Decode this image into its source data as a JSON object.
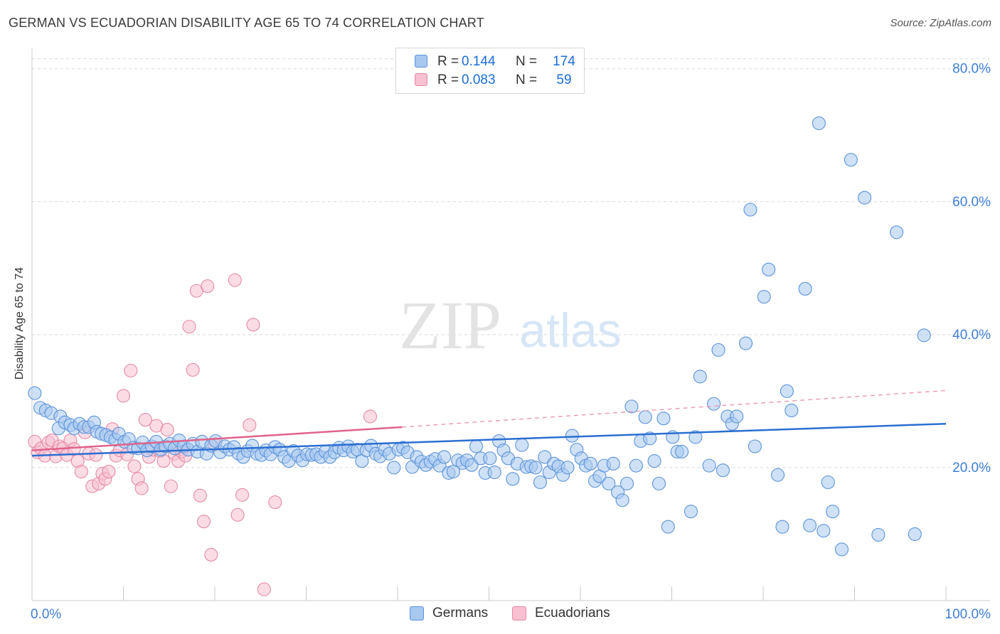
{
  "title": "GERMAN VS ECUADORIAN DISABILITY AGE 65 TO 74 CORRELATION CHART",
  "source": "Source: ZipAtlas.com",
  "watermark": {
    "zip": "ZIP",
    "atlas": "atlas"
  },
  "legend": [
    {
      "r_label": "R =",
      "r_value": "0.144",
      "n_label": "N =",
      "n_value": "174",
      "color": "#a8c8f0",
      "stroke": "#5b93d8"
    },
    {
      "r_label": "R =",
      "r_value": "0.083",
      "n_label": "N =",
      "n_value": "59",
      "color": "#f8c0d0",
      "stroke": "#e48aa6"
    }
  ],
  "bottom_legend": [
    "Germans",
    "Ecuadorians"
  ],
  "chart_data": {
    "type": "scatter",
    "title": "GERMAN VS ECUADORIAN DISABILITY AGE 65 TO 74 CORRELATION CHART",
    "xlabel": "",
    "ylabel": "Disability Age 65 to 74",
    "xlim": [
      0,
      100
    ],
    "ylim": [
      0,
      82
    ],
    "x_tick_labels": [
      "0.0%",
      "100.0%"
    ],
    "y_ticks": [
      20,
      40,
      60,
      80
    ],
    "y_tick_labels": [
      "20.0%",
      "40.0%",
      "60.0%",
      "80.0%"
    ],
    "grid": true,
    "legend_position": "top-center",
    "series": [
      {
        "name": "Germans",
        "color": "#a8c8f0",
        "stroke": "#5b93d8",
        "trend": {
          "x": [
            0,
            100
          ],
          "y": [
            21.8,
            26.6
          ],
          "color": "#2b6fd1"
        },
        "points": [
          [
            0.3,
            31.2
          ],
          [
            0.9,
            29.0
          ],
          [
            1.5,
            28.6
          ],
          [
            2.1,
            28.2
          ],
          [
            3.1,
            27.7
          ],
          [
            2.9,
            25.9
          ],
          [
            3.6,
            26.8
          ],
          [
            4.2,
            26.4
          ],
          [
            4.6,
            25.9
          ],
          [
            5.2,
            26.6
          ],
          [
            5.7,
            26.1
          ],
          [
            6.2,
            26.1
          ],
          [
            6.8,
            26.8
          ],
          [
            7.1,
            25.4
          ],
          [
            7.6,
            25.1
          ],
          [
            8.1,
            24.9
          ],
          [
            8.6,
            24.6
          ],
          [
            9.1,
            24.2
          ],
          [
            9.5,
            25.1
          ],
          [
            10.1,
            23.9
          ],
          [
            10.6,
            24.3
          ],
          [
            11.1,
            23.0
          ],
          [
            11.6,
            22.9
          ],
          [
            12.1,
            23.8
          ],
          [
            12.6,
            22.6
          ],
          [
            13.1,
            23.2
          ],
          [
            13.6,
            23.9
          ],
          [
            14.1,
            22.7
          ],
          [
            14.6,
            23.2
          ],
          [
            15.1,
            23.6
          ],
          [
            15.6,
            22.9
          ],
          [
            16.1,
            24.1
          ],
          [
            16.6,
            23.2
          ],
          [
            17.1,
            22.7
          ],
          [
            17.6,
            23.6
          ],
          [
            18.1,
            22.4
          ],
          [
            18.6,
            23.9
          ],
          [
            19.1,
            22.1
          ],
          [
            19.6,
            23.3
          ],
          [
            20.1,
            24.0
          ],
          [
            20.6,
            22.3
          ],
          [
            21.1,
            23.2
          ],
          [
            21.6,
            22.7
          ],
          [
            22.1,
            23.1
          ],
          [
            22.6,
            22.1
          ],
          [
            23.1,
            21.6
          ],
          [
            23.6,
            22.5
          ],
          [
            24.1,
            23.3
          ],
          [
            24.6,
            22.1
          ],
          [
            25.1,
            21.9
          ],
          [
            25.6,
            22.6
          ],
          [
            26.1,
            22.0
          ],
          [
            26.6,
            23.1
          ],
          [
            27.1,
            22.7
          ],
          [
            27.6,
            21.6
          ],
          [
            28.1,
            21.0
          ],
          [
            28.6,
            22.5
          ],
          [
            29.1,
            21.8
          ],
          [
            29.6,
            21.1
          ],
          [
            30.1,
            22.0
          ],
          [
            30.6,
            21.9
          ],
          [
            31.1,
            22.0
          ],
          [
            31.6,
            21.6
          ],
          [
            32.1,
            22.4
          ],
          [
            32.6,
            21.6
          ],
          [
            33.1,
            22.3
          ],
          [
            33.6,
            23.0
          ],
          [
            34.1,
            22.6
          ],
          [
            34.6,
            23.2
          ],
          [
            35.1,
            22.4
          ],
          [
            35.6,
            22.7
          ],
          [
            36.1,
            21.0
          ],
          [
            36.6,
            22.6
          ],
          [
            37.1,
            23.3
          ],
          [
            37.6,
            22.1
          ],
          [
            38.1,
            21.7
          ],
          [
            38.6,
            22.7
          ],
          [
            39.1,
            22.1
          ],
          [
            39.6,
            20.0
          ],
          [
            40.1,
            22.7
          ],
          [
            40.6,
            23.0
          ],
          [
            41.1,
            22.3
          ],
          [
            41.6,
            20.1
          ],
          [
            42.1,
            21.6
          ],
          [
            42.6,
            20.9
          ],
          [
            43.1,
            20.4
          ],
          [
            43.6,
            20.9
          ],
          [
            44.1,
            21.3
          ],
          [
            44.6,
            20.3
          ],
          [
            45.1,
            21.6
          ],
          [
            45.6,
            19.2
          ],
          [
            46.1,
            19.4
          ],
          [
            46.6,
            21.1
          ],
          [
            47.1,
            20.7
          ],
          [
            47.6,
            21.1
          ],
          [
            48.1,
            20.4
          ],
          [
            48.6,
            23.2
          ],
          [
            49.1,
            21.4
          ],
          [
            49.6,
            19.2
          ],
          [
            50.1,
            21.4
          ],
          [
            50.6,
            19.3
          ],
          [
            51.1,
            24.0
          ],
          [
            51.6,
            22.6
          ],
          [
            52.1,
            21.4
          ],
          [
            52.6,
            18.3
          ],
          [
            53.1,
            20.6
          ],
          [
            53.6,
            23.4
          ],
          [
            54.1,
            20.1
          ],
          [
            54.6,
            20.2
          ],
          [
            55.1,
            20.0
          ],
          [
            55.6,
            17.8
          ],
          [
            56.1,
            21.6
          ],
          [
            56.6,
            19.3
          ],
          [
            57.1,
            20.6
          ],
          [
            57.6,
            20.2
          ],
          [
            58.1,
            18.9
          ],
          [
            58.6,
            20.0
          ],
          [
            59.1,
            24.8
          ],
          [
            59.6,
            22.7
          ],
          [
            60.1,
            21.4
          ],
          [
            60.6,
            20.3
          ],
          [
            61.1,
            20.6
          ],
          [
            61.6,
            18.0
          ],
          [
            62.1,
            18.7
          ],
          [
            62.6,
            20.3
          ],
          [
            63.1,
            17.6
          ],
          [
            63.6,
            20.6
          ],
          [
            64.1,
            16.3
          ],
          [
            64.6,
            15.1
          ],
          [
            65.1,
            17.6
          ],
          [
            65.6,
            29.2
          ],
          [
            66.1,
            20.3
          ],
          [
            66.6,
            24.0
          ],
          [
            67.1,
            27.6
          ],
          [
            67.6,
            24.4
          ],
          [
            68.1,
            21.0
          ],
          [
            68.6,
            17.6
          ],
          [
            69.1,
            27.4
          ],
          [
            69.6,
            11.1
          ],
          [
            70.1,
            24.6
          ],
          [
            70.6,
            22.4
          ],
          [
            71.1,
            22.4
          ],
          [
            72.1,
            13.4
          ],
          [
            72.6,
            24.6
          ],
          [
            73.1,
            33.7
          ],
          [
            74.1,
            20.3
          ],
          [
            74.6,
            29.6
          ],
          [
            75.1,
            37.7
          ],
          [
            75.6,
            19.6
          ],
          [
            76.1,
            27.7
          ],
          [
            76.6,
            26.6
          ],
          [
            77.1,
            27.7
          ],
          [
            78.1,
            38.7
          ],
          [
            78.6,
            58.8
          ],
          [
            79.1,
            23.2
          ],
          [
            80.1,
            45.7
          ],
          [
            80.6,
            49.8
          ],
          [
            81.6,
            18.9
          ],
          [
            82.1,
            11.1
          ],
          [
            82.6,
            31.5
          ],
          [
            83.1,
            28.6
          ],
          [
            84.6,
            46.9
          ],
          [
            85.1,
            11.3
          ],
          [
            86.1,
            71.8
          ],
          [
            86.6,
            10.5
          ],
          [
            87.1,
            17.8
          ],
          [
            87.6,
            13.4
          ],
          [
            88.6,
            7.7
          ],
          [
            89.6,
            66.3
          ],
          [
            91.1,
            60.6
          ],
          [
            92.6,
            9.9
          ],
          [
            94.6,
            55.4
          ],
          [
            96.6,
            10.0
          ],
          [
            97.6,
            39.9
          ]
        ]
      },
      {
        "name": "Ecuadorians",
        "color": "#f8c0d0",
        "stroke": "#e48aa6",
        "trend": {
          "x": [
            0,
            40.5
          ],
          "y": [
            22.6,
            26.1
          ],
          "color": "#e0638a",
          "dashed_extension_to": [
            100,
            31.6
          ]
        },
        "points": [
          [
            0.3,
            23.9
          ],
          [
            0.6,
            22.3
          ],
          [
            1.0,
            22.9
          ],
          [
            1.4,
            21.8
          ],
          [
            1.8,
            23.8
          ],
          [
            2.2,
            24.1
          ],
          [
            2.6,
            21.7
          ],
          [
            3.0,
            23.2
          ],
          [
            3.4,
            22.9
          ],
          [
            3.8,
            21.9
          ],
          [
            4.2,
            24.1
          ],
          [
            4.6,
            22.8
          ],
          [
            5.0,
            21.0
          ],
          [
            5.4,
            19.4
          ],
          [
            5.8,
            25.3
          ],
          [
            6.2,
            22.1
          ],
          [
            6.6,
            17.2
          ],
          [
            7.0,
            21.9
          ],
          [
            7.3,
            17.6
          ],
          [
            7.7,
            19.1
          ],
          [
            8.0,
            18.3
          ],
          [
            8.4,
            19.4
          ],
          [
            8.8,
            25.8
          ],
          [
            9.2,
            21.8
          ],
          [
            9.6,
            22.6
          ],
          [
            10.0,
            30.8
          ],
          [
            10.4,
            22.0
          ],
          [
            10.8,
            34.6
          ],
          [
            11.2,
            20.2
          ],
          [
            11.6,
            18.3
          ],
          [
            12.0,
            16.9
          ],
          [
            12.4,
            27.2
          ],
          [
            12.8,
            21.6
          ],
          [
            13.2,
            22.7
          ],
          [
            13.6,
            26.3
          ],
          [
            14.0,
            22.5
          ],
          [
            14.4,
            21.0
          ],
          [
            14.8,
            25.7
          ],
          [
            15.2,
            17.2
          ],
          [
            15.6,
            22.1
          ],
          [
            16.0,
            21.0
          ],
          [
            16.4,
            22.4
          ],
          [
            16.8,
            21.8
          ],
          [
            17.2,
            41.2
          ],
          [
            17.6,
            34.7
          ],
          [
            18.0,
            46.6
          ],
          [
            18.4,
            15.8
          ],
          [
            18.8,
            11.9
          ],
          [
            19.2,
            47.3
          ],
          [
            19.6,
            6.9
          ],
          [
            20.0,
            23.5
          ],
          [
            22.2,
            48.2
          ],
          [
            22.5,
            12.9
          ],
          [
            23.0,
            15.9
          ],
          [
            23.8,
            26.4
          ],
          [
            24.2,
            41.5
          ],
          [
            25.4,
            1.7
          ],
          [
            26.6,
            14.8
          ],
          [
            37.0,
            27.7
          ]
        ]
      }
    ]
  }
}
